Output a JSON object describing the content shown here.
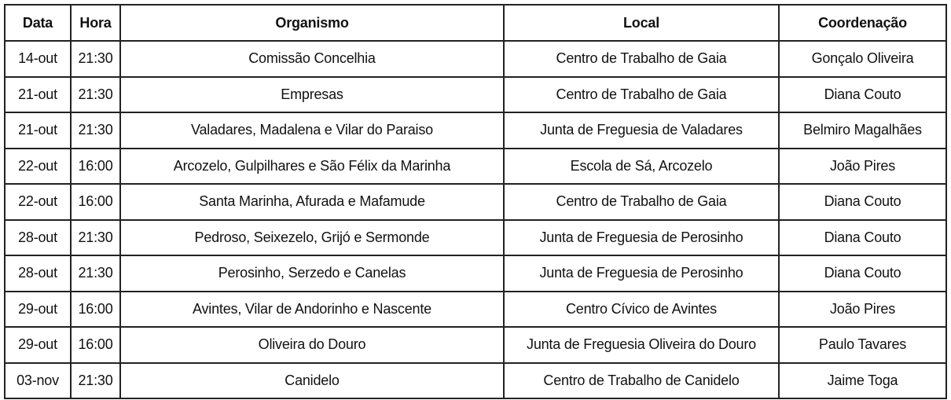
{
  "headers": [
    "Data",
    "Hora",
    "Organismo",
    "Local",
    "Coordenação"
  ],
  "rows": [
    [
      "14-out",
      "21:30",
      "Comissão Concelhia",
      "Centro de Trabalho de Gaia",
      "Gonçalo Oliveira"
    ],
    [
      "21-out",
      "21:30",
      "Empresas",
      "Centro de Trabalho de Gaia",
      "Diana Couto"
    ],
    [
      "21-out",
      "21:30",
      "Valadares, Madalena e Vilar do Paraiso",
      "Junta de Freguesia de Valadares",
      "Belmiro Magalhães"
    ],
    [
      "22-out",
      "16:00",
      "Arcozelo, Gulpilhares e São Félix da Marinha",
      "Escola de Sá, Arcozelo",
      "João Pires"
    ],
    [
      "22-out",
      "16:00",
      "Santa Marinha, Afurada e Mafamude",
      "Centro de Trabalho de Gaia",
      "Diana Couto"
    ],
    [
      "28-out",
      "21:30",
      "Pedroso, Seixezelo, Grijó e Sermonde",
      "Junta de Freguesia de Perosinho",
      "Diana Couto"
    ],
    [
      "28-out",
      "21:30",
      "Perosinho, Serzedo e Canelas",
      "Junta de Freguesia de Perosinho",
      "Diana Couto"
    ],
    [
      "29-out",
      "16:00",
      "Avintes, Vilar de Andorinho e Nascente",
      "Centro Cívico de Avintes",
      "João Pires"
    ],
    [
      "29-out",
      "16:00",
      "Oliveira do Douro",
      "Junta de Freguesia Oliveira do Douro",
      "Paulo Tavares"
    ],
    [
      "03-nov",
      "21:30",
      "Canidelo",
      "Centro de Trabalho de Canidelo",
      "Jaime Toga"
    ]
  ]
}
